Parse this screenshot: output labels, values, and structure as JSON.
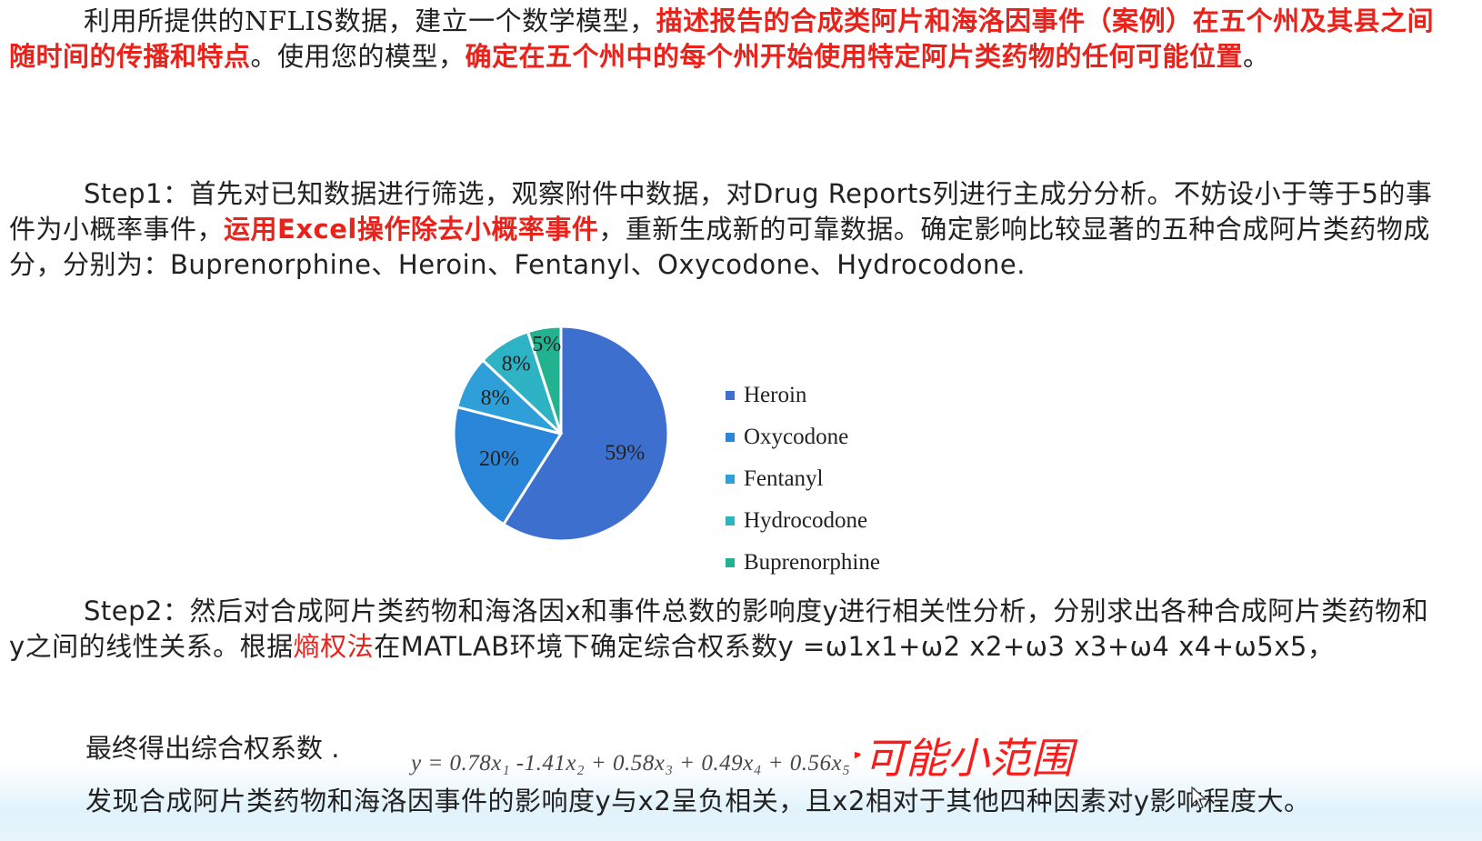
{
  "intro": {
    "part1": "利用所提供的NFLIS数据，建立一个数学模型，",
    "red1": "描述报告的合成类阿片和海洛因事件（案例）在五个州及其县之间随时间的传播和特点",
    "part2": "。使用您的模型，",
    "red2": "确定在五个州中的每个州开始使用特定阿片类药物的任何可能位置",
    "part3": "。"
  },
  "step1": {
    "lead": "Step1：首先对已知数据进行筛选，观察附件中数据，对Drug Reports列进行主成分分析。不妨设小于等于5的事件为小概率事件，",
    "red": "运用Excel操作除去小概率事件",
    "tail": "，重新生成新的可靠数据。确定影响比较显著的五种合成阿片类药物成分，分别为：Buprenorphine、Heroin、Fentanyl、Oxycodone、Hydrocodone."
  },
  "chart_data": {
    "type": "pie",
    "title": "",
    "categories": [
      "Heroin",
      "Oxycodone",
      "Fentanyl",
      "Hydrocodone",
      "Buprenorphine"
    ],
    "values": [
      59,
      20,
      8,
      8,
      5
    ],
    "labels": [
      "59%",
      "20%",
      "8%",
      "8%",
      "5%"
    ],
    "colors": [
      "#3d6fcf",
      "#2a86d9",
      "#2e9fd8",
      "#2eb3c4",
      "#22b28f"
    ],
    "legend_position": "right"
  },
  "step2": {
    "lead": "Step2：然后对合成阿片类药物和海洛因x和事件总数的影响度y进行相关性分析，分别求出各种合成阿片类药物和y之间的线性关系。根据",
    "red": "熵权法",
    "tail": "在MATLAB环境下确定综合权系数y =ω1x1+ω2 x2+ω3 x3+ω4 x4+ω5x5，"
  },
  "final_label": "最终得出综合权系数 .",
  "formula": "y = 0.78x₁ -1.41x₂ + 0.58x₃ + 0.49x₄ + 0.56x₅",
  "conclusion": "发现合成阿片类药物和海洛因事件的影响度y与x2呈负相关，且x2相对于其他四种因素对y影响程度大。",
  "annotation": {
    "text": "可能小范围",
    "color": "#ff1a1a"
  }
}
